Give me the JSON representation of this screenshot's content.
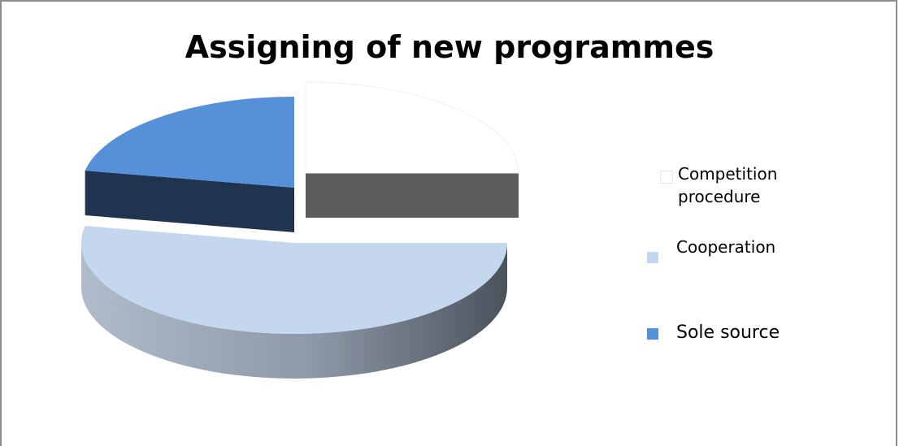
{
  "chart_data": {
    "type": "pie",
    "title": "Assigning of new programmes",
    "exploded": true,
    "three_d": true,
    "series": [
      {
        "name": "",
        "slices": [
          {
            "label": "Competition procedure",
            "value": 25,
            "color": "#ffffff",
            "side_color": "#6b6b6b"
          },
          {
            "label": "Cooperation",
            "value": 53,
            "color": "#c5d7ef",
            "side_color": "#6f7d90"
          },
          {
            "label": "Sole source",
            "value": 22,
            "color": "#5590d8",
            "side_color": "#203552"
          }
        ]
      }
    ],
    "legend": {
      "placement": "right",
      "items": [
        {
          "label": "Competition procedure",
          "line1": "Competition",
          "line2": "procedure",
          "swatch": "#ffffff",
          "trunc": "C"
        },
        {
          "label": "Cooperation",
          "line1": "Cooperation",
          "line2": "",
          "swatch": "#c5d7ef",
          "trunc": "C"
        },
        {
          "label": "Sole source",
          "line1": "Sole source",
          "line2": "",
          "swatch": "#5590d8",
          "trunc": "S"
        }
      ]
    }
  }
}
